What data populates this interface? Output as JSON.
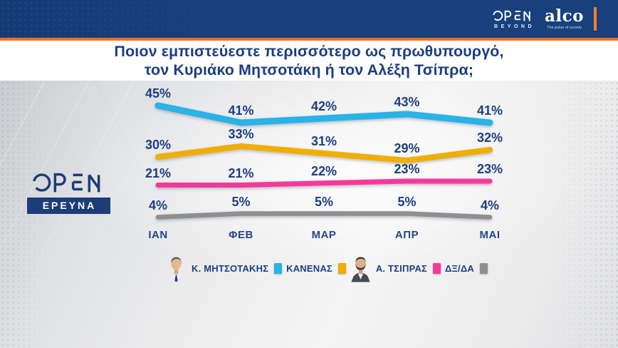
{
  "header": {
    "open": {
      "text": "OPEN",
      "subtitle": "BEYOND"
    },
    "alco": {
      "text": "alco",
      "tagline": "The pulse of society"
    }
  },
  "title": {
    "line1": "Ποιον εμπιστεύεστε περισσότερο ως πρωθυπουργό,",
    "line2": "τον Κυριάκο Μητσοτάκη ή τον Αλέξη Τσίπρα;"
  },
  "side_logo": {
    "text": "OPEN",
    "badge": "ΕΡΕΥΝΑ"
  },
  "chart_data": {
    "type": "line",
    "title": "Ποιον εμπιστεύεστε περισσότερο ως πρωθυπουργό, τον Κυριάκο Μητσοτάκη ή τον Αλέξη Τσίπρα;",
    "categories": [
      "ΙΑΝ",
      "ΦΕΒ",
      "ΜΑΡ",
      "ΑΠΡ",
      "ΜΑΙ"
    ],
    "value_suffix": "%",
    "grid": false,
    "legend_position": "bottom",
    "series": [
      {
        "name": "Κ. ΜΗΤΣΟΤΑΚΗΣ",
        "color": "#29b3e7",
        "values": [
          45,
          41,
          42,
          43,
          41
        ]
      },
      {
        "name": "ΚΑΝΕΝΑΣ",
        "color": "#efae00",
        "values": [
          30,
          33,
          31,
          29,
          32
        ]
      },
      {
        "name": "Α. ΤΣΙΠΡΑΣ",
        "color": "#f5399b",
        "values": [
          21,
          21,
          22,
          23,
          23
        ]
      },
      {
        "name": "ΔΞ/ΔΑ",
        "color": "#8d8f90",
        "values": [
          4,
          5,
          5,
          5,
          4
        ]
      }
    ]
  },
  "legend": {
    "items": [
      {
        "label": "Κ. ΜΗΤΣΟΤΑΚΗΣ",
        "color": "#29b3e7",
        "photo": "mitsotakis"
      },
      {
        "label": "ΚΑΝΕΝΑΣ",
        "color": "#efae00",
        "photo": null
      },
      {
        "label": "Α. ΤΣΙΠΡΑΣ",
        "color": "#f5399b",
        "photo": "tsipras"
      },
      {
        "label": "ΔΞ/ΔΑ",
        "color": "#8d8f90",
        "photo": null
      }
    ]
  },
  "colors": {
    "header_navy": "#17407d",
    "accent_orange": "#ef7023",
    "alco_bar_orange": "#f58025",
    "title_navy": "#1c3e80",
    "label_navy": "#1c3e80",
    "month_navy": "#24478a",
    "badge_navy": "#1d3c78"
  }
}
